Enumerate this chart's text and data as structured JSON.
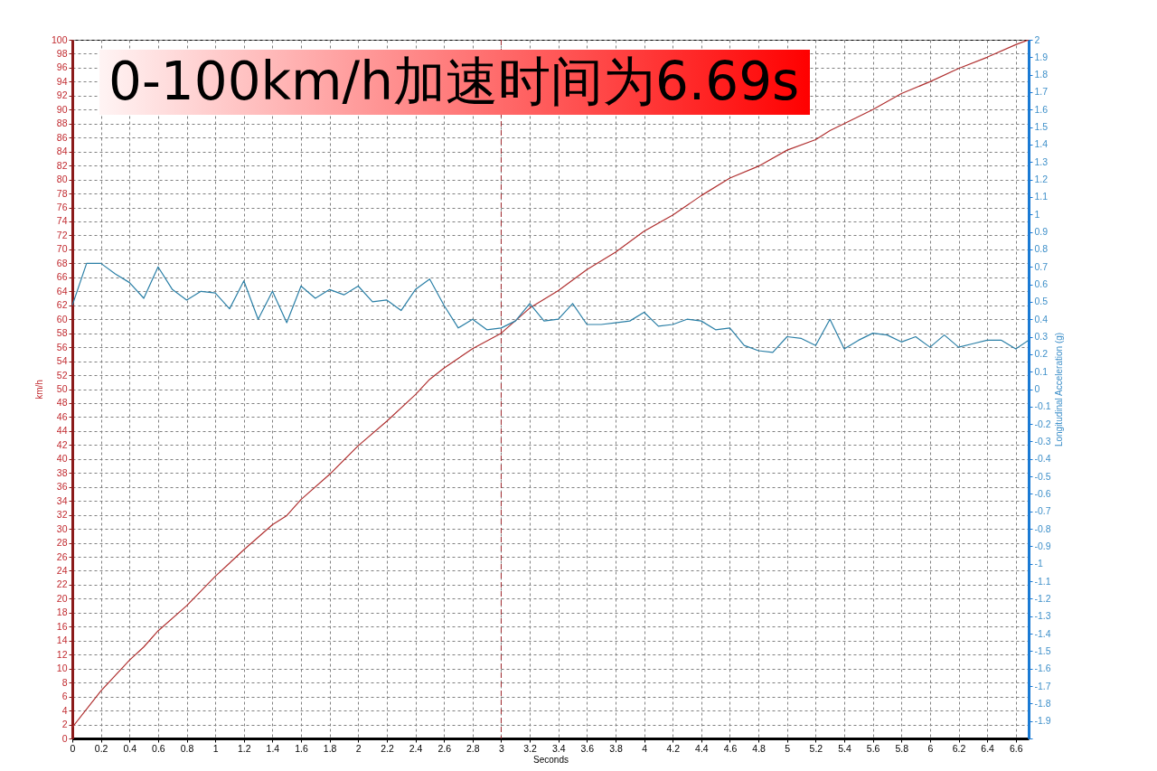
{
  "chart_data": {
    "type": "line",
    "title": "0-100km/h加速时间为6.69s",
    "xlabel": "Seconds",
    "ylabel": "km/h",
    "y2label": "Longitudinal Acceleration (g)",
    "xlim": [
      0,
      6.69
    ],
    "xticks": [
      0,
      0.2,
      0.4,
      0.6,
      0.8,
      1,
      1.2,
      1.4,
      1.6,
      1.8,
      2,
      2.2,
      2.4,
      2.6,
      2.8,
      3,
      3.2,
      3.4,
      3.6,
      3.8,
      4,
      4.2,
      4.4,
      4.6,
      4.8,
      5,
      5.2,
      5.4,
      5.6,
      5.8,
      6,
      6.2,
      6.4,
      6.6
    ],
    "ylim": [
      0,
      100
    ],
    "yticks": [
      0,
      2,
      4,
      6,
      8,
      10,
      12,
      14,
      16,
      18,
      20,
      22,
      24,
      26,
      28,
      30,
      32,
      34,
      36,
      38,
      40,
      42,
      44,
      46,
      48,
      50,
      52,
      54,
      56,
      58,
      60,
      62,
      64,
      66,
      68,
      70,
      72,
      74,
      76,
      78,
      80,
      82,
      84,
      86,
      88,
      90,
      92,
      94,
      96,
      98,
      100
    ],
    "y2lim": [
      -2,
      2
    ],
    "y2ticks": [
      {
        "value": -2,
        "label": null
      },
      -1.9,
      -1.8,
      -1.7,
      -1.6,
      -1.5,
      -1.4,
      -1.3,
      -1.2,
      -1.1,
      -1,
      -0.9,
      -0.8,
      -0.7,
      -0.6,
      -0.5,
      -0.4,
      -0.3,
      -0.2,
      -0.1,
      0,
      0.1,
      0.2,
      0.3,
      0.4,
      0.5,
      0.6,
      0.7,
      0.8,
      0.9,
      1,
      1.1,
      1.2,
      1.3,
      1.4,
      1.5,
      1.6,
      1.7,
      1.8,
      1.9,
      2
    ],
    "grid": true,
    "ref_lines": [
      {
        "axis": "x",
        "value": 3,
        "color": "#a0282d",
        "line_style": "dashed"
      }
    ],
    "series": [
      {
        "color": "#b03030",
        "x": [
          0,
          0.2,
          0.4,
          0.5,
          0.6,
          0.8,
          1,
          1.2,
          1.4,
          1.5,
          1.6,
          1.8,
          2,
          2.2,
          2.4,
          2.5,
          2.6,
          2.8,
          3,
          3.2,
          3.4,
          3.6,
          3.8,
          4,
          4.2,
          4.4,
          4.6,
          4.8,
          5,
          5.2,
          5.3,
          5.4,
          5.6,
          5.8,
          6,
          6.2,
          6.4,
          6.6,
          6.69
        ],
        "values": [
          1.6,
          6.8,
          11.2,
          13.1,
          15.4,
          19.0,
          23.2,
          27.0,
          30.6,
          31.9,
          34.2,
          37.8,
          41.9,
          45.4,
          49.2,
          51.4,
          53.0,
          55.8,
          58.0,
          61.6,
          64.1,
          67.1,
          69.6,
          72.6,
          74.9,
          77.7,
          80.2,
          81.9,
          84.2,
          85.7,
          87.0,
          88.0,
          90.0,
          92.3,
          94.0,
          95.9,
          97.5,
          99.3,
          100
        ]
      },
      {
        "color": "#2a7fa6",
        "axis": "y2",
        "x": [
          0,
          0.1,
          0.2,
          0.3,
          0.4,
          0.5,
          0.6,
          0.7,
          0.8,
          0.9,
          1,
          1.1,
          1.2,
          1.3,
          1.4,
          1.5,
          1.6,
          1.7,
          1.8,
          1.9,
          2,
          2.1,
          2.2,
          2.3,
          2.4,
          2.5,
          2.6,
          2.7,
          2.8,
          2.9,
          3,
          3.1,
          3.2,
          3.3,
          3.4,
          3.5,
          3.6,
          3.7,
          3.8,
          3.9,
          4,
          4.1,
          4.2,
          4.3,
          4.4,
          4.5,
          4.6,
          4.7,
          4.8,
          4.9,
          5,
          5.1,
          5.2,
          5.3,
          5.4,
          5.5,
          5.6,
          5.7,
          5.8,
          5.9,
          6,
          6.1,
          6.2,
          6.3,
          6.4,
          6.5,
          6.6,
          6.69
        ],
        "values": [
          0.48,
          0.72,
          0.72,
          0.66,
          0.61,
          0.52,
          0.7,
          0.57,
          0.51,
          0.56,
          0.55,
          0.46,
          0.62,
          0.4,
          0.56,
          0.38,
          0.59,
          0.52,
          0.57,
          0.54,
          0.59,
          0.5,
          0.51,
          0.45,
          0.57,
          0.63,
          0.48,
          0.35,
          0.4,
          0.34,
          0.35,
          0.39,
          0.49,
          0.39,
          0.4,
          0.49,
          0.37,
          0.37,
          0.38,
          0.39,
          0.44,
          0.36,
          0.37,
          0.4,
          0.39,
          0.34,
          0.35,
          0.25,
          0.22,
          0.21,
          0.3,
          0.29,
          0.25,
          0.4,
          0.23,
          0.28,
          0.32,
          0.31,
          0.27,
          0.3,
          0.24,
          0.31,
          0.24,
          0.26,
          0.28,
          0.28,
          0.23,
          0.28
        ]
      }
    ]
  }
}
